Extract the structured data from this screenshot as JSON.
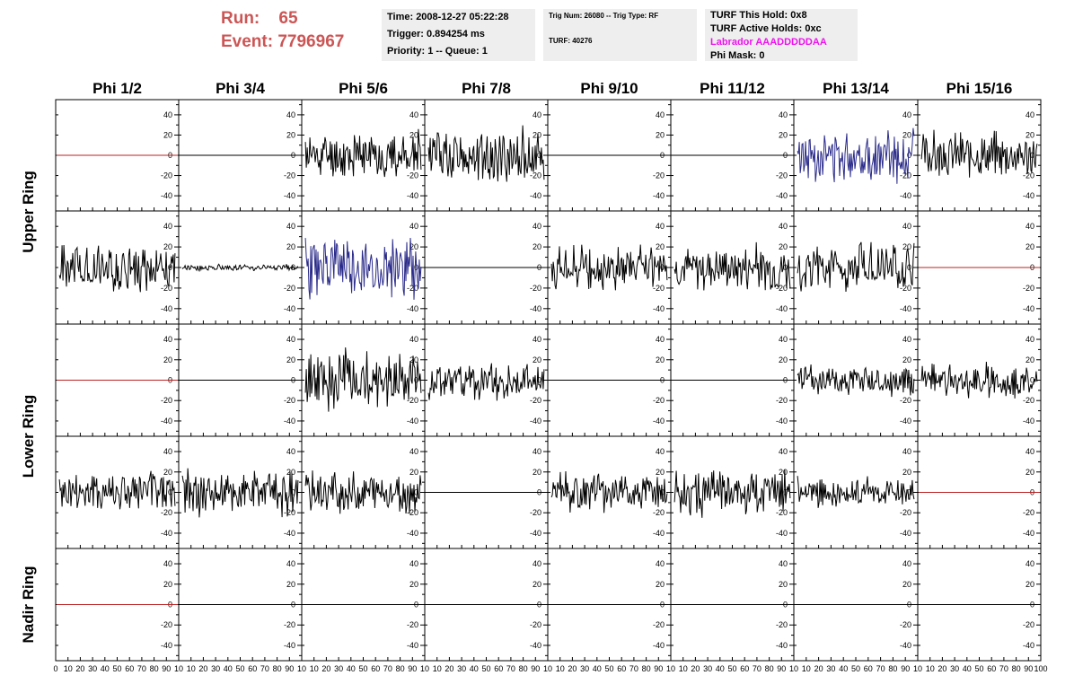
{
  "header": {
    "run_label": "Run:",
    "run_value": "65",
    "event_label": "Event:",
    "event_value": "7796967",
    "time": "Time: 2008-12-27 05:22:28",
    "trigger": "Trigger: 0.894254 ms",
    "priority": "Priority: 1 -- Queue: 1",
    "trig_num": "Trig Num: 26080 -- Trig Type: RF",
    "turf": "TURF: 40276",
    "turf_hold": "TURF This Hold: 0x8",
    "turf_active": "TURF Active Holds: 0xc",
    "labrador": "Labrador AAADDDDDAA",
    "phi_mask": "Phi Mask: 0"
  },
  "colors": {
    "run_text": "#cc5555",
    "labrador_text": "#ee11ee",
    "panel_bg": "#eeeeee",
    "trace_black": "#000000",
    "trace_blue": "#2a2a8a",
    "trace_red": "#bb2222"
  },
  "chart_data": {
    "type": "line",
    "columns": [
      "Phi 1/2",
      "Phi 3/4",
      "Phi 5/6",
      "Phi 7/8",
      "Phi 9/10",
      "Phi 11/12",
      "Phi 13/14",
      "Phi 15/16"
    ],
    "rows": [
      "Upper Ring",
      "Lower Ring",
      "Nadir Ring"
    ],
    "row_groups": [
      {
        "label": "Upper Ring",
        "rows": [
          0,
          1
        ]
      },
      {
        "label": "Lower Ring",
        "rows": [
          2,
          3
        ]
      },
      {
        "label": "Nadir Ring",
        "rows": [
          4
        ]
      }
    ],
    "xlim": [
      0,
      100
    ],
    "ylim": [
      -55,
      55
    ],
    "y_ticks": [
      -40,
      -20,
      0,
      20,
      40
    ],
    "x_ticks": [
      0,
      10,
      20,
      30,
      40,
      50,
      60,
      70,
      80,
      90,
      100
    ],
    "x_tick_labels_last_column": [
      "10",
      "20",
      "30",
      "40",
      "50",
      "60",
      "70",
      "80",
      "90",
      "100"
    ],
    "x_tick_labels_first_column": [
      "0",
      "10",
      "20",
      "30",
      "40",
      "50",
      "60",
      "70",
      "80",
      "90",
      "10"
    ],
    "x_tick_labels_other": [
      "10",
      "20",
      "30",
      "40",
      "50",
      "60",
      "70",
      "80",
      "90",
      "10"
    ],
    "panels": [
      [
        {
          "kind": "flat",
          "color": "#bb2222"
        },
        {
          "kind": "flat",
          "color": "#000000"
        },
        {
          "kind": "noise",
          "amp": 22,
          "color": "#000000",
          "seed": 11
        },
        {
          "kind": "noise",
          "amp": 26,
          "color": "#000000",
          "seed": 12
        },
        {
          "kind": "flat",
          "color": "#000000"
        },
        {
          "kind": "flat",
          "color": "#000000"
        },
        {
          "kind": "noise",
          "amp": 24,
          "color": "#2a2a8a",
          "seed": 13
        },
        {
          "kind": "noise",
          "amp": 22,
          "color": "#000000",
          "seed": 14
        }
      ],
      [
        {
          "kind": "noise",
          "amp": 22,
          "color": "#000000",
          "seed": 21
        },
        {
          "kind": "noise",
          "amp": 3,
          "color": "#000000",
          "seed": 22
        },
        {
          "kind": "noise",
          "amp": 30,
          "color": "#2a2a8a",
          "seed": 23
        },
        {
          "kind": "flat",
          "color": "#000000"
        },
        {
          "kind": "noise",
          "amp": 20,
          "color": "#000000",
          "seed": 25
        },
        {
          "kind": "noise",
          "amp": 21,
          "color": "#000000",
          "seed": 26
        },
        {
          "kind": "noise",
          "amp": 22,
          "color": "#000000",
          "seed": 27
        },
        {
          "kind": "flat",
          "color": "#bb2222"
        }
      ],
      [
        {
          "kind": "flat",
          "color": "#bb2222"
        },
        {
          "kind": "flat",
          "color": "#000000"
        },
        {
          "kind": "noise",
          "amp": 28,
          "color": "#000000",
          "seed": 33
        },
        {
          "kind": "noise",
          "amp": 18,
          "color": "#000000",
          "seed": 34
        },
        {
          "kind": "flat",
          "color": "#000000"
        },
        {
          "kind": "flat",
          "color": "#000000"
        },
        {
          "kind": "noise",
          "amp": 15,
          "color": "#000000",
          "seed": 37
        },
        {
          "kind": "noise",
          "amp": 16,
          "color": "#000000",
          "seed": 38
        }
      ],
      [
        {
          "kind": "noise",
          "amp": 20,
          "color": "#000000",
          "seed": 41
        },
        {
          "kind": "noise",
          "amp": 22,
          "color": "#000000",
          "seed": 42
        },
        {
          "kind": "noise",
          "amp": 20,
          "color": "#000000",
          "seed": 43
        },
        {
          "kind": "flat",
          "color": "#000000"
        },
        {
          "kind": "noise",
          "amp": 18,
          "color": "#000000",
          "seed": 45
        },
        {
          "kind": "noise",
          "amp": 22,
          "color": "#000000",
          "seed": 46
        },
        {
          "kind": "noise",
          "amp": 14,
          "color": "#000000",
          "seed": 47
        },
        {
          "kind": "flat",
          "color": "#bb2222"
        }
      ],
      [
        {
          "kind": "flat",
          "color": "#bb2222"
        },
        {
          "kind": "flat",
          "color": "#000000"
        },
        {
          "kind": "flat",
          "color": "#000000"
        },
        {
          "kind": "flat",
          "color": "#000000"
        },
        {
          "kind": "flat",
          "color": "#000000"
        },
        {
          "kind": "flat",
          "color": "#000000"
        },
        {
          "kind": "flat",
          "color": "#000000"
        },
        {
          "kind": "flat",
          "color": "#000000"
        }
      ]
    ]
  }
}
